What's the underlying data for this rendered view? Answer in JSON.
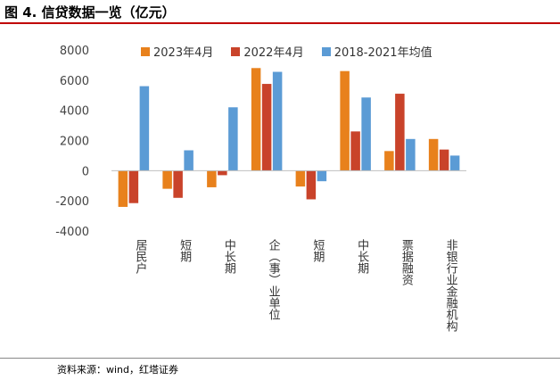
{
  "header": {
    "title": "图 4. 信贷数据一览（亿元）"
  },
  "footer": {
    "source": "资料来源：wind，红塔证券"
  },
  "chart_data": {
    "type": "bar",
    "title": "信贷数据一览（亿元）",
    "categories": [
      "居民户",
      "短期",
      "中长期",
      "企（事）业单位",
      "短期",
      "中长期",
      "票据融资",
      "非银行业金融机构"
    ],
    "series": [
      {
        "name": "2023年4月",
        "color": "#E8811C",
        "values": [
          -2400,
          -1200,
          -1100,
          6800,
          -1050,
          6600,
          1300,
          2100
        ]
      },
      {
        "name": "2022年4月",
        "color": "#C9432A",
        "values": [
          -2150,
          -1800,
          -300,
          5750,
          -1900,
          2600,
          5100,
          1400
        ]
      },
      {
        "name": "2018-2021年均值",
        "color": "#5B9BD5",
        "values": [
          5600,
          1350,
          4200,
          6550,
          -700,
          4850,
          2100,
          1000
        ]
      }
    ],
    "ylim": [
      -4000,
      8000
    ],
    "yticks": [
      -4000,
      -2000,
      0,
      2000,
      4000,
      6000,
      8000
    ],
    "legend_position": "top",
    "grid": false,
    "xlabel": "",
    "ylabel": ""
  }
}
